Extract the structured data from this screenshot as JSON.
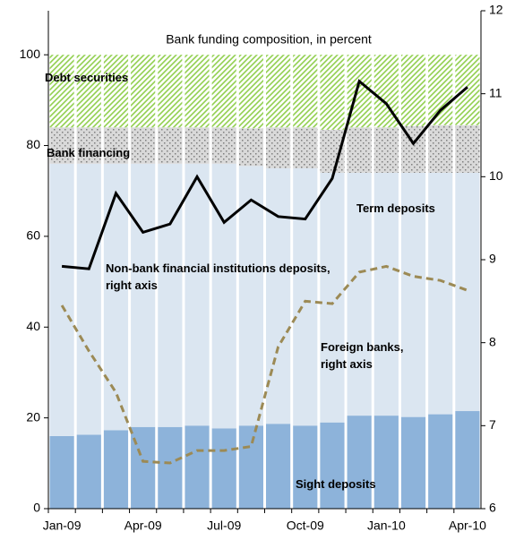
{
  "chart_data": {
    "type": "bar",
    "stacked": true,
    "title": "Bank funding composition, in percent",
    "categories": [
      "Jan-09",
      null,
      null,
      "Apr-09",
      null,
      null,
      "Jul-09",
      null,
      null,
      "Oct-09",
      null,
      null,
      "Jan-10",
      null,
      null,
      "Apr-10"
    ],
    "ylim": [
      0,
      109.7
    ],
    "yticks": [
      0,
      20,
      40,
      60,
      80,
      100
    ],
    "y2lim": [
      6,
      12
    ],
    "y2ticks": [
      6,
      7,
      8,
      9,
      10,
      11,
      12
    ],
    "series": [
      {
        "name": "Sight deposits",
        "color": "#8db3da",
        "values": [
          16,
          16.3,
          17.3,
          18,
          18,
          18.3,
          17.7,
          18.3,
          18.7,
          18.3,
          19,
          20.5,
          20.5,
          20.2,
          20.8,
          21.5
        ]
      },
      {
        "name": "Term deposits",
        "color": "#dbe6f1",
        "values": [
          60,
          59.7,
          58.7,
          58,
          58,
          57.7,
          58.3,
          57.2,
          56.3,
          56.7,
          55,
          53.5,
          53.5,
          53.8,
          53.2,
          52.5
        ]
      },
      {
        "name": "Bank financing",
        "color": "#7f7f7f",
        "values": [
          8,
          8,
          8,
          8,
          8,
          8,
          8,
          8.3,
          9,
          9,
          9.5,
          10,
          10,
          10.3,
          10.5,
          10.5
        ]
      },
      {
        "name": "Debt securities",
        "color": "#92d050",
        "values": [
          16,
          16,
          16,
          16,
          16,
          16,
          16,
          16.2,
          16,
          16,
          16.5,
          16,
          16,
          15.7,
          15.5,
          15.5
        ]
      },
      {
        "name": "Non-bank financial institutions deposits, right axis",
        "type": "line",
        "axis": "y2",
        "color": "#000000",
        "dashed": false,
        "values": [
          8.92,
          8.89,
          9.8,
          9.33,
          9.43,
          10.0,
          9.45,
          9.72,
          9.52,
          9.49,
          9.98,
          11.15,
          10.88,
          10.4,
          10.8,
          11.08
        ]
      },
      {
        "name": "Foreign banks, right axis",
        "type": "line",
        "axis": "y2",
        "color": "#9c8a55",
        "dashed": true,
        "values": [
          8.45,
          7.9,
          7.4,
          6.57,
          6.55,
          6.7,
          6.7,
          6.75,
          7.95,
          8.5,
          8.47,
          8.85,
          8.92,
          8.8,
          8.75,
          8.63
        ]
      }
    ]
  }
}
